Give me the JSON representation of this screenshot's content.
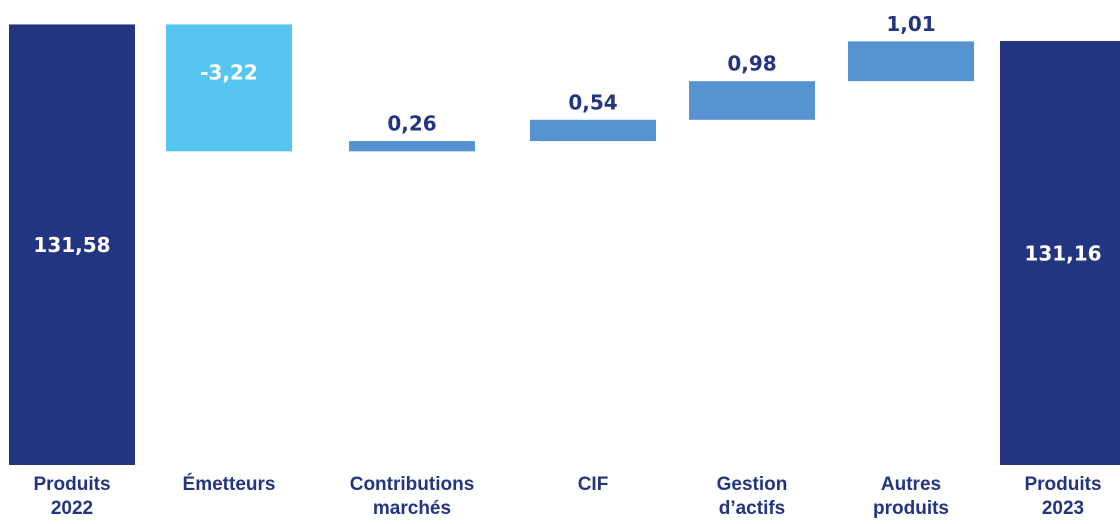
{
  "chart_data": {
    "type": "waterfall",
    "categories": [
      "Produits 2022",
      "Émetteurs",
      "Contributions marchés",
      "CIF",
      "Gestion d’actifs",
      "Autres produits",
      "Produits 2023"
    ],
    "values": [
      131.58,
      -3.22,
      0.26,
      0.54,
      0.98,
      1.01,
      131.16
    ],
    "value_labels": [
      "131,58",
      "-3,22",
      "0,26",
      "0,54",
      "0,98",
      "1,01",
      "131,16"
    ],
    "measure": [
      "absolute",
      "relative",
      "relative",
      "relative",
      "relative",
      "relative",
      "absolute"
    ],
    "colors": [
      "#233580",
      "#56c5ef",
      "#5793d0",
      "#5793d0",
      "#5793d0",
      "#5793d0",
      "#233580"
    ],
    "ylim": [
      120.4,
      132.2
    ]
  }
}
